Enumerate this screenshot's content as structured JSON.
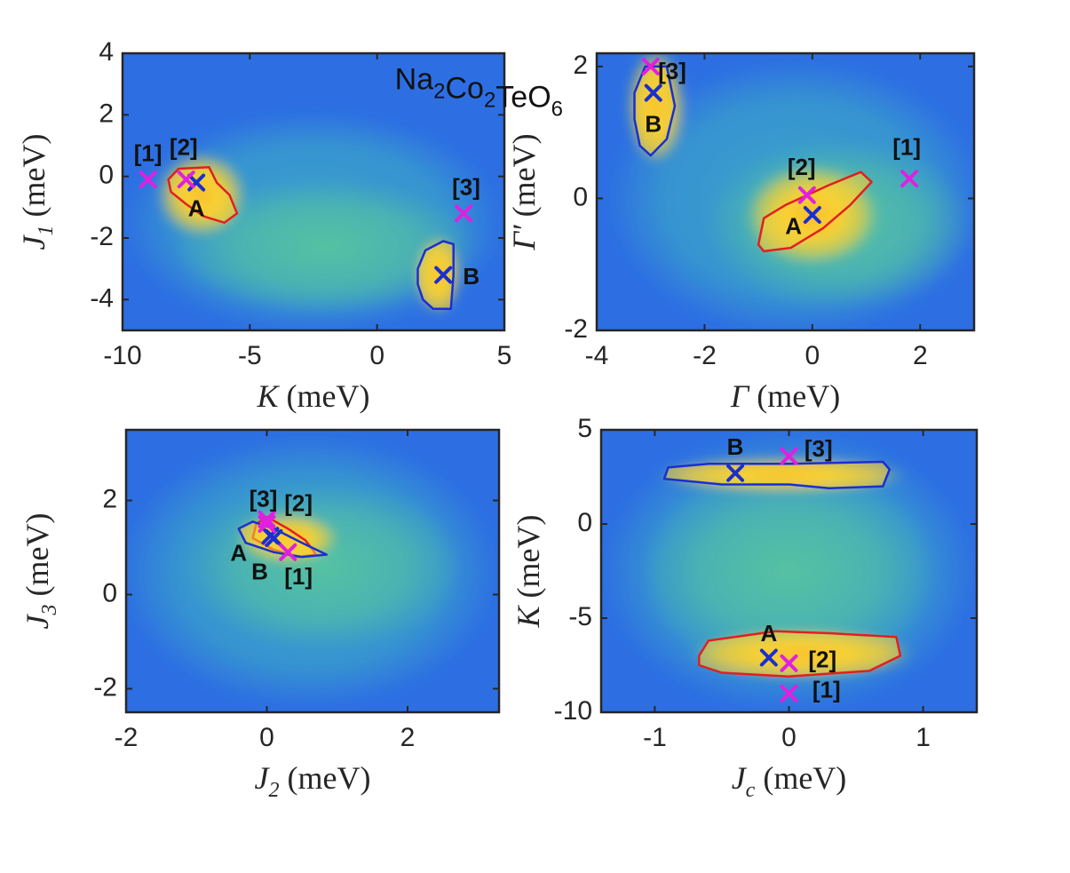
{
  "title": "Na2Co2TeO6",
  "colors": {
    "background": "#2d6fe3",
    "field": "#3aa3c9",
    "valley": "#57c3a0",
    "hot": "#f9d233",
    "core": "#f4a52a",
    "contour_A": "#e02020",
    "contour_B": "#1a2fd1",
    "marker_model": "#1a2fd1",
    "marker_reference": "#e020e0",
    "axis": "#262626"
  },
  "chart_data": [
    {
      "id": "p1",
      "type": "heatmap",
      "xlabel": {
        "symbol": "K",
        "sub": "",
        "unit": "(meV)"
      },
      "ylabel": {
        "symbol": "J",
        "sub": "1",
        "unit": "(meV)"
      },
      "xlim": [
        -10,
        5
      ],
      "ylim": [
        -5,
        4
      ],
      "xticks": [
        {
          "v": -10,
          "label": "-10"
        },
        {
          "v": -5,
          "label": "-5"
        },
        {
          "v": 0,
          "label": "0"
        },
        {
          "v": 5,
          "label": "5"
        }
      ],
      "yticks": [
        {
          "v": 4,
          "label": "4"
        },
        {
          "v": 2,
          "label": "2"
        },
        {
          "v": 0,
          "label": "0"
        },
        {
          "v": -2,
          "label": "-2"
        },
        {
          "v": -4,
          "label": "-4"
        }
      ],
      "inset_title": {
        "main": "Na",
        "parts": [
          [
            "Na",
            "2"
          ],
          [
            "Co",
            "2"
          ],
          [
            "TeO",
            "6"
          ]
        ],
        "x": 4.0,
        "y": 3.0
      },
      "regions": [
        {
          "name": "A",
          "color": "#e02020",
          "polygon": [
            [
              -8.2,
              -0.1
            ],
            [
              -7.8,
              0.25
            ],
            [
              -6.6,
              0.3
            ],
            [
              -6.3,
              -0.2
            ],
            [
              -5.8,
              -0.6
            ],
            [
              -5.5,
              -1.2
            ],
            [
              -6.0,
              -1.5
            ],
            [
              -6.8,
              -1.3
            ],
            [
              -7.5,
              -0.9
            ],
            [
              -8.1,
              -0.5
            ]
          ]
        },
        {
          "name": "B",
          "color": "#1a2fd1",
          "polygon": [
            [
              1.6,
              -3.0
            ],
            [
              1.9,
              -2.4
            ],
            [
              2.6,
              -2.1
            ],
            [
              3.0,
              -2.2
            ],
            [
              3.0,
              -3.2
            ],
            [
              2.9,
              -4.3
            ],
            [
              2.2,
              -4.3
            ],
            [
              1.8,
              -4.0
            ],
            [
              1.6,
              -3.5
            ]
          ]
        }
      ],
      "points": [
        {
          "label": "A",
          "x": -7.1,
          "y": -0.2,
          "kind": "model",
          "label_x": -7.1,
          "label_y": -1.1
        },
        {
          "label": "B",
          "x": 2.6,
          "y": -3.2,
          "kind": "model",
          "label_x": 3.7,
          "label_y": -3.3
        },
        {
          "label": "[1]",
          "x": -9.0,
          "y": -0.1,
          "kind": "reference",
          "label_x": -9.0,
          "label_y": 0.7
        },
        {
          "label": "[2]",
          "x": -7.5,
          "y": -0.1,
          "kind": "reference",
          "label_x": -7.6,
          "label_y": 0.9
        },
        {
          "label": "[3]",
          "x": 3.4,
          "y": -1.2,
          "kind": "reference",
          "label_x": 3.5,
          "label_y": -0.4
        }
      ]
    },
    {
      "id": "p2",
      "type": "heatmap",
      "xlabel": {
        "symbol": "Γ",
        "sub": "",
        "unit": "(meV)"
      },
      "ylabel": {
        "symbol": "Γ′",
        "sub": "",
        "unit": "(meV)"
      },
      "xlim": [
        -4,
        3
      ],
      "ylim": [
        -2,
        2.2
      ],
      "xticks": [
        {
          "v": -4,
          "label": "-4"
        },
        {
          "v": -2,
          "label": "-2"
        },
        {
          "v": 0,
          "label": "0"
        },
        {
          "v": 2,
          "label": "2"
        }
      ],
      "yticks": [
        {
          "v": 2,
          "label": "2"
        },
        {
          "v": 0,
          "label": "0"
        },
        {
          "v": -2,
          "label": "-2"
        }
      ],
      "regions": [
        {
          "name": "A",
          "color": "#e02020",
          "polygon": [
            [
              -1.0,
              -0.7
            ],
            [
              -0.9,
              -0.3
            ],
            [
              -0.5,
              -0.1
            ],
            [
              0.3,
              0.2
            ],
            [
              0.9,
              0.4
            ],
            [
              1.1,
              0.25
            ],
            [
              0.7,
              -0.1
            ],
            [
              0.2,
              -0.45
            ],
            [
              -0.4,
              -0.75
            ],
            [
              -0.9,
              -0.8
            ]
          ]
        },
        {
          "name": "B",
          "color": "#1a2fd1",
          "polygon": [
            [
              -3.3,
              1.6
            ],
            [
              -3.1,
              2.0
            ],
            [
              -2.7,
              2.0
            ],
            [
              -2.55,
              1.4
            ],
            [
              -2.7,
              0.9
            ],
            [
              -3.0,
              0.65
            ],
            [
              -3.2,
              0.8
            ],
            [
              -3.3,
              1.2
            ]
          ]
        }
      ],
      "points": [
        {
          "label": "A",
          "x": 0.0,
          "y": -0.25,
          "kind": "model",
          "label_x": -0.35,
          "label_y": -0.45
        },
        {
          "label": "B",
          "x": -2.95,
          "y": 1.6,
          "kind": "model",
          "label_x": -2.95,
          "label_y": 1.1
        },
        {
          "label": "[1]",
          "x": 1.8,
          "y": 0.3,
          "kind": "reference",
          "label_x": 1.75,
          "label_y": 0.75
        },
        {
          "label": "[2]",
          "x": -0.1,
          "y": 0.05,
          "kind": "reference",
          "label_x": -0.2,
          "label_y": 0.45
        },
        {
          "label": "[3]",
          "x": -3.0,
          "y": 2.0,
          "kind": "reference",
          "label_x": -2.6,
          "label_y": 1.9
        }
      ]
    },
    {
      "id": "p3",
      "type": "heatmap",
      "xlabel": {
        "symbol": "J",
        "sub": "2",
        "unit": "(meV)"
      },
      "ylabel": {
        "symbol": "J",
        "sub": "3",
        "unit": "(meV)"
      },
      "xlim": [
        -2,
        3.3
      ],
      "ylim": [
        -2.5,
        3.5
      ],
      "xticks": [
        {
          "v": -2,
          "label": "-2"
        },
        {
          "v": 0,
          "label": "0"
        },
        {
          "v": 2,
          "label": "2"
        }
      ],
      "yticks": [
        {
          "v": 2,
          "label": "2"
        },
        {
          "v": 0,
          "label": "0"
        },
        {
          "v": -2,
          "label": "-2"
        }
      ],
      "regions": [
        {
          "name": "A",
          "color": "#e02020",
          "polygon": [
            [
              -0.15,
              1.5
            ],
            [
              0.0,
              1.65
            ],
            [
              0.3,
              1.4
            ],
            [
              0.55,
              1.15
            ],
            [
              0.7,
              0.85
            ],
            [
              0.45,
              0.8
            ],
            [
              0.1,
              0.95
            ],
            [
              -0.2,
              1.2
            ]
          ]
        },
        {
          "name": "B",
          "color": "#1a2fd1",
          "polygon": [
            [
              -0.4,
              1.4
            ],
            [
              -0.2,
              1.55
            ],
            [
              0.1,
              1.4
            ],
            [
              0.5,
              1.1
            ],
            [
              0.85,
              0.85
            ],
            [
              0.5,
              0.8
            ],
            [
              0.1,
              0.9
            ],
            [
              -0.3,
              1.1
            ]
          ]
        }
      ],
      "points": [
        {
          "label": "A",
          "x": 0.05,
          "y": 1.25,
          "kind": "model",
          "label_x": -0.4,
          "label_y": 0.85
        },
        {
          "label": "B",
          "x": 0.1,
          "y": 1.2,
          "kind": "model",
          "label_x": -0.1,
          "label_y": 0.45
        },
        {
          "label": "[1]",
          "x": 0.3,
          "y": 0.9,
          "kind": "reference",
          "label_x": 0.45,
          "label_y": 0.35
        },
        {
          "label": "[2]",
          "x": 0.0,
          "y": 1.5,
          "kind": "reference",
          "label_x": 0.45,
          "label_y": 1.9
        },
        {
          "label": "[3]",
          "x": 0.0,
          "y": 1.6,
          "kind": "reference",
          "label_x": -0.05,
          "label_y": 2.0
        }
      ]
    },
    {
      "id": "p4",
      "type": "heatmap",
      "xlabel": {
        "symbol": "J",
        "sub": "c",
        "unit": "(meV)"
      },
      "ylabel": {
        "symbol": "K",
        "sub": "",
        "unit": "(meV)"
      },
      "xlim": [
        -1.4,
        1.4
      ],
      "ylim": [
        -10,
        5
      ],
      "xticks": [
        {
          "v": -1,
          "label": "-1"
        },
        {
          "v": 0,
          "label": "0"
        },
        {
          "v": 1,
          "label": "1"
        }
      ],
      "yticks": [
        {
          "v": 5,
          "label": "5"
        },
        {
          "v": 0,
          "label": "0"
        },
        {
          "v": -5,
          "label": "-5"
        },
        {
          "v": -10,
          "label": "-10"
        }
      ],
      "regions": [
        {
          "name": "B",
          "color": "#1a2fd1",
          "polygon": [
            [
              -0.93,
              2.4
            ],
            [
              -0.9,
              3.0
            ],
            [
              -0.6,
              3.2
            ],
            [
              0.0,
              3.2
            ],
            [
              0.7,
              3.3
            ],
            [
              0.75,
              2.9
            ],
            [
              0.7,
              2.0
            ],
            [
              0.3,
              1.9
            ],
            [
              0.0,
              2.1
            ],
            [
              -0.5,
              2.1
            ]
          ]
        },
        {
          "name": "A",
          "color": "#e02020",
          "polygon": [
            [
              -0.67,
              -7.0
            ],
            [
              -0.6,
              -6.2
            ],
            [
              -0.1,
              -5.7
            ],
            [
              0.3,
              -5.8
            ],
            [
              0.8,
              -6.0
            ],
            [
              0.83,
              -7.0
            ],
            [
              0.6,
              -7.8
            ],
            [
              0.0,
              -8.1
            ],
            [
              -0.5,
              -7.9
            ],
            [
              -0.67,
              -7.5
            ]
          ]
        }
      ],
      "points": [
        {
          "label": "A",
          "x": -0.15,
          "y": -7.1,
          "kind": "model",
          "label_x": -0.15,
          "label_y": -5.9
        },
        {
          "label": "B",
          "x": -0.4,
          "y": 2.7,
          "kind": "model",
          "label_x": -0.4,
          "label_y": 4.0
        },
        {
          "label": "[1]",
          "x": 0.0,
          "y": -9.0,
          "kind": "reference",
          "label_x": 0.28,
          "label_y": -8.9
        },
        {
          "label": "[2]",
          "x": 0.0,
          "y": -7.4,
          "kind": "reference",
          "label_x": 0.25,
          "label_y": -7.3
        },
        {
          "label": "[3]",
          "x": 0.0,
          "y": 3.6,
          "kind": "reference",
          "label_x": 0.22,
          "label_y": 3.9
        }
      ]
    }
  ]
}
